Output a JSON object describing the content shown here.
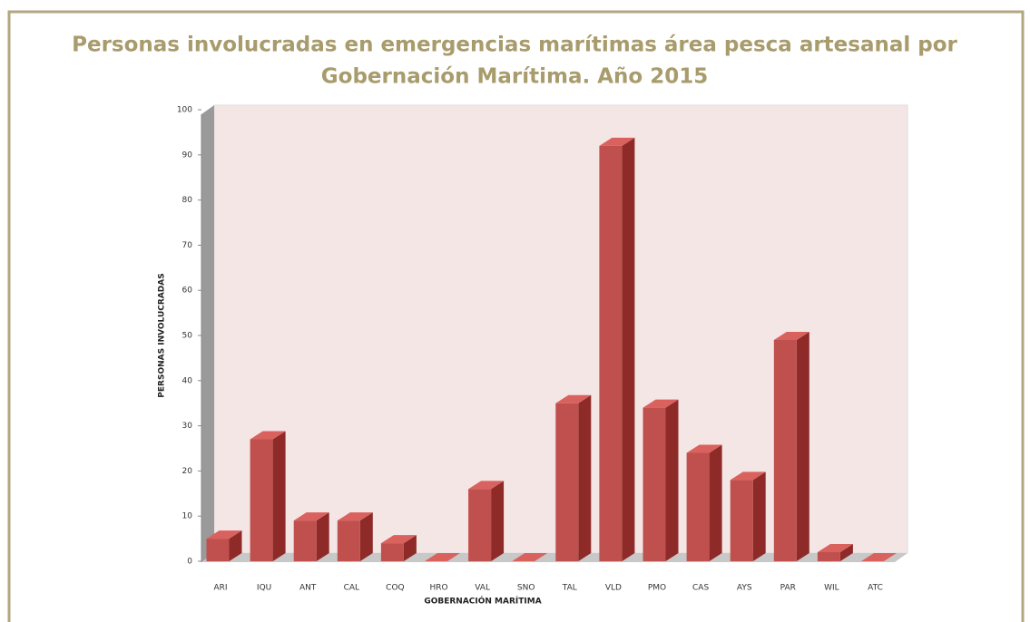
{
  "chart_data": {
    "type": "bar3d",
    "title": [
      "Personas involucradas en emergencias marítimas área pesca artesanal por",
      "Gobernación Marítima. Año 2015"
    ],
    "x_label": "GOBERNACIÓN MARÍTIMA",
    "y_label": "PERSONAS INVOLUCRADAS",
    "categories": [
      "ARI",
      "IQU",
      "ANT",
      "CAL",
      "COQ",
      "HRO",
      "VAL",
      "SNO",
      "TAL",
      "VLD",
      "PMO",
      "CAS",
      "AYS",
      "PAR",
      "WIL",
      "ATC"
    ],
    "values": [
      5,
      27,
      9,
      9,
      4,
      0,
      16,
      0,
      35,
      92,
      34,
      24,
      18,
      49,
      2,
      0
    ],
    "color": "#c0504d",
    "ylim": [
      0,
      100
    ],
    "yticks": [
      0,
      10,
      20,
      30,
      40,
      50,
      60,
      70,
      80,
      90,
      100
    ],
    "grid": false
  }
}
